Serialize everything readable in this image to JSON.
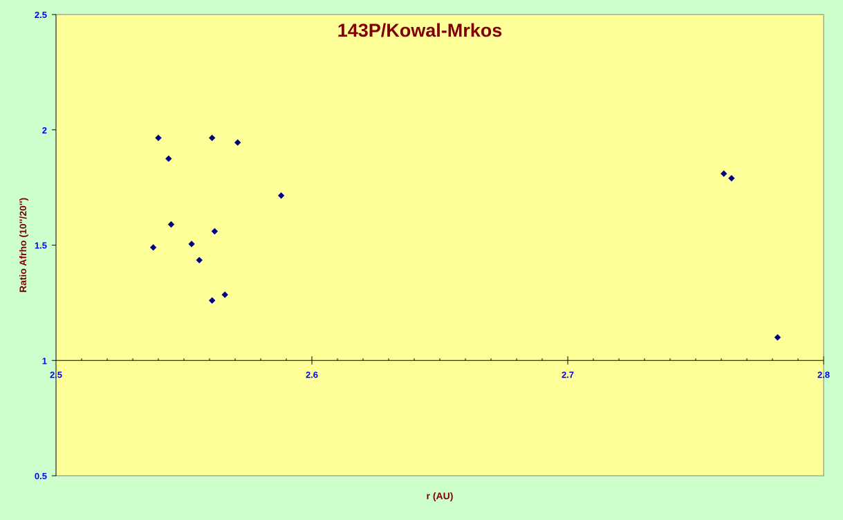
{
  "chart_data": {
    "type": "scatter",
    "title": "143P/Kowal-Mrkos",
    "xlabel": "r (AU)",
    "ylabel": "Ratio Afrho (10''/20'')",
    "xlim": [
      2.5,
      2.8
    ],
    "ylim": [
      0.5,
      2.5
    ],
    "x_axis_crosses_y": 1.0,
    "x_ticks": [
      2.5,
      2.6,
      2.7,
      2.8
    ],
    "x_tick_labels": [
      "2.5",
      "2.6",
      "2.7",
      "2.8"
    ],
    "y_ticks": [
      0.5,
      1,
      1.5,
      2,
      2.5
    ],
    "y_tick_labels": [
      "0.5",
      "1",
      "1.5",
      "2",
      "2.5"
    ],
    "x_minor_step": 0.01,
    "grid": false,
    "legend": "none",
    "marker": "diamond",
    "series": [
      {
        "points": [
          [
            2.538,
            1.49
          ],
          [
            2.54,
            1.965
          ],
          [
            2.544,
            1.875
          ],
          [
            2.545,
            1.59
          ],
          [
            2.553,
            1.505
          ],
          [
            2.556,
            1.435
          ],
          [
            2.561,
            1.965
          ],
          [
            2.561,
            1.26
          ],
          [
            2.562,
            1.56
          ],
          [
            2.566,
            1.285
          ],
          [
            2.571,
            1.945
          ],
          [
            2.588,
            1.715
          ],
          [
            2.761,
            1.81
          ],
          [
            2.764,
            1.79
          ],
          [
            2.782,
            1.1
          ]
        ]
      }
    ]
  },
  "colors": {
    "outer_background": "#ccffcc",
    "plot_background": "#ffff99",
    "axis_line": "#000000",
    "plot_border": "#808080",
    "tick_label": "#0000ff",
    "title": "#800000",
    "axis_title": "#800000",
    "marker_fill": "#000080"
  }
}
